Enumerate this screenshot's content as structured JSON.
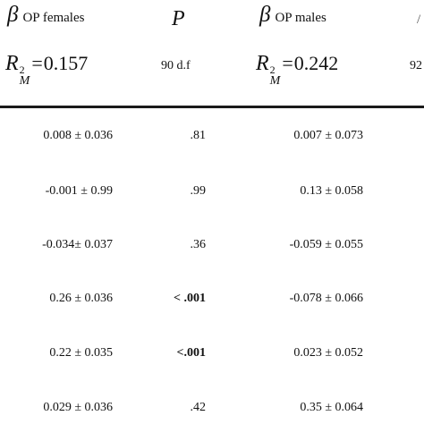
{
  "headers": {
    "beta_symbol": "β",
    "females_label": "OP females",
    "p_label": "P",
    "males_label": "OP males",
    "females_r2": {
      "r": "R",
      "sup": "2",
      "sub": "M",
      "eq": "=",
      "value": "0.157"
    },
    "p_df": "90 d.f",
    "males_r2": {
      "r": "R",
      "sup": "2",
      "sub": "M",
      "eq": "=",
      "value": "0.242"
    },
    "cut_right_top": "/",
    "cut_right_df": "92"
  },
  "rows": [
    {
      "females": "0.008 ± 0.036",
      "p": ".81",
      "males": "0.007 ± 0.073",
      "p_bold": false
    },
    {
      "females": "-0.001 ± 0.99",
      "p": ".99",
      "males": "0.13 ± 0.058",
      "p_bold": false
    },
    {
      "females": "-0.034± 0.037",
      "p": ".36",
      "males": "-0.059 ± 0.055",
      "p_bold": false
    },
    {
      "females": "0.26 ± 0.036",
      "p": "< .001",
      "males": "-0.078 ± 0.066",
      "p_bold": true
    },
    {
      "females": "0.22 ± 0.035",
      "p": "<.001",
      "males": "0.023 ± 0.052",
      "p_bold": true
    },
    {
      "females": "0.029 ± 0.036",
      "p": ".42",
      "males": "0.35 ± 0.064",
      "p_bold": false
    }
  ]
}
